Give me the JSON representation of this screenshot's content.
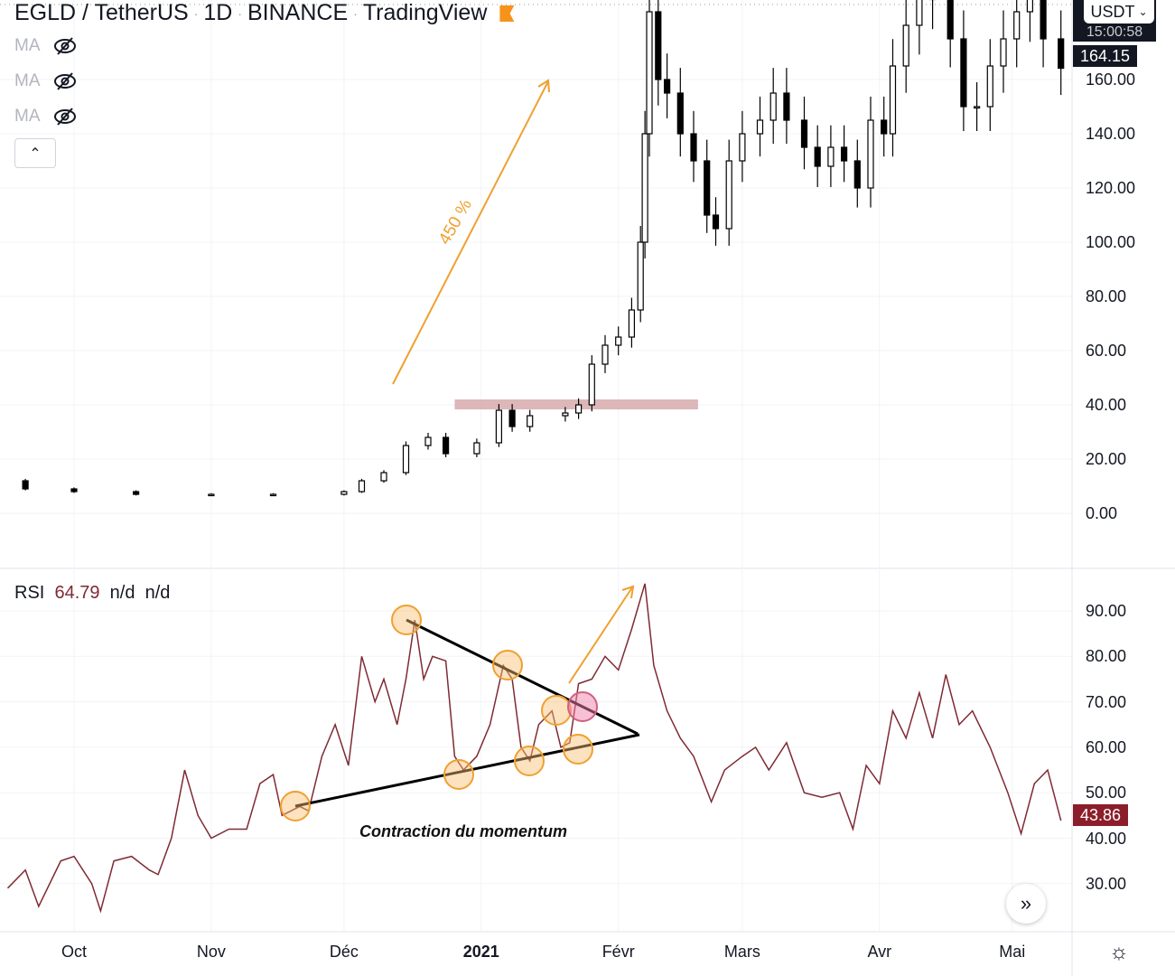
{
  "header": {
    "symbol": "EGLD / TetherUS",
    "interval": "1D",
    "exchange": "BINANCE",
    "source": "TradingView",
    "flag_color": "#f7931a"
  },
  "indicators": [
    {
      "label": "MA",
      "icon": "eye-off-icon"
    },
    {
      "label": "MA",
      "icon": "eye-off-icon"
    },
    {
      "label": "MA",
      "icon": "eye-off-icon"
    }
  ],
  "collapse_icon": "chevron-up-icon",
  "currency_selector": {
    "label": "USDT",
    "countdown": "15:00:58"
  },
  "last_price": "164.15",
  "rsi_legend": {
    "name": "RSI",
    "value": "64.79",
    "v2": "n/d",
    "v3": "n/d",
    "last_value": "43.86",
    "line_color": "#7f2a33"
  },
  "annotations": {
    "gain_label": "450 %",
    "rsi_note": "Contraction du momentum",
    "arrow_color": "#f0a030",
    "zone_color": "#d4a5a8"
  },
  "chart_data": [
    {
      "type": "candlestick",
      "title": "EGLD / TetherUS 1D",
      "ylim": [
        0,
        190
      ],
      "y_ticks": [
        "0.00",
        "20.00",
        "40.00",
        "60.00",
        "80.00",
        "100.00",
        "120.00",
        "140.00",
        "160.00"
      ],
      "x_ticks": [
        "Oct",
        "Nov",
        "Déc",
        "2021",
        "Févr",
        "Mars",
        "Avr",
        "Mai"
      ],
      "resistance_zone": {
        "value": 40,
        "from": "2020-12-26",
        "to": "2021-02-19"
      },
      "series": [
        [
          "2020-09-14",
          12
        ],
        [
          "2020-09-20",
          9
        ],
        [
          "2020-10-01",
          8
        ],
        [
          "2020-10-15",
          7
        ],
        [
          "2020-11-01",
          7
        ],
        [
          "2020-11-15",
          7
        ],
        [
          "2020-12-01",
          8
        ],
        [
          "2020-12-05",
          12
        ],
        [
          "2020-12-10",
          15
        ],
        [
          "2020-12-15",
          25
        ],
        [
          "2020-12-20",
          28
        ],
        [
          "2020-12-24",
          22
        ],
        [
          "2020-12-31",
          26
        ],
        [
          "2021-01-05",
          38
        ],
        [
          "2021-01-08",
          32
        ],
        [
          "2021-01-12",
          36
        ],
        [
          "2021-01-20",
          37
        ],
        [
          "2021-01-23",
          40
        ],
        [
          "2021-01-26",
          55
        ],
        [
          "2021-01-29",
          62
        ],
        [
          "2021-02-01",
          65
        ],
        [
          "2021-02-04",
          75
        ],
        [
          "2021-02-06",
          100
        ],
        [
          "2021-02-07",
          140
        ],
        [
          "2021-02-08",
          185
        ],
        [
          "2021-02-10",
          160
        ],
        [
          "2021-02-12",
          155
        ],
        [
          "2021-02-15",
          140
        ],
        [
          "2021-02-18",
          130
        ],
        [
          "2021-02-21",
          110
        ],
        [
          "2021-02-23",
          105
        ],
        [
          "2021-02-26",
          130
        ],
        [
          "2021-03-01",
          140
        ],
        [
          "2021-03-05",
          145
        ],
        [
          "2021-03-08",
          155
        ],
        [
          "2021-03-11",
          145
        ],
        [
          "2021-03-15",
          135
        ],
        [
          "2021-03-18",
          128
        ],
        [
          "2021-03-21",
          135
        ],
        [
          "2021-03-24",
          130
        ],
        [
          "2021-03-27",
          120
        ],
        [
          "2021-03-30",
          145
        ],
        [
          "2021-04-02",
          140
        ],
        [
          "2021-04-04",
          165
        ],
        [
          "2021-04-07",
          180
        ],
        [
          "2021-04-10",
          190
        ],
        [
          "2021-04-13",
          190
        ],
        [
          "2021-04-17",
          175
        ],
        [
          "2021-04-20",
          150
        ],
        [
          "2021-04-23",
          150
        ],
        [
          "2021-04-26",
          165
        ],
        [
          "2021-04-29",
          175
        ],
        [
          "2021-05-02",
          185
        ],
        [
          "2021-05-05",
          190
        ],
        [
          "2021-05-08",
          175
        ],
        [
          "2021-05-12",
          164.15
        ]
      ]
    },
    {
      "type": "line",
      "title": "RSI",
      "ylim": [
        24,
        98
      ],
      "y_ticks": [
        "30.00",
        "40.00",
        "50.00",
        "60.00",
        "70.00",
        "80.00",
        "90.00"
      ],
      "series": [
        [
          "2020-09-16",
          29
        ],
        [
          "2020-09-20",
          33
        ],
        [
          "2020-09-23",
          25
        ],
        [
          "2020-09-28",
          35
        ],
        [
          "2020-10-01",
          36
        ],
        [
          "2020-10-05",
          30
        ],
        [
          "2020-10-07",
          24
        ],
        [
          "2020-10-10",
          35
        ],
        [
          "2020-10-14",
          36
        ],
        [
          "2020-10-18",
          33
        ],
        [
          "2020-10-20",
          32
        ],
        [
          "2020-10-23",
          40
        ],
        [
          "2020-10-26",
          55
        ],
        [
          "2020-10-29",
          45
        ],
        [
          "2020-11-01",
          40
        ],
        [
          "2020-11-05",
          42
        ],
        [
          "2020-11-09",
          42
        ],
        [
          "2020-11-12",
          52
        ],
        [
          "2020-11-15",
          54
        ],
        [
          "2020-11-17",
          45
        ],
        [
          "2020-11-21",
          47
        ],
        [
          "2020-11-23",
          46
        ],
        [
          "2020-11-26",
          58
        ],
        [
          "2020-11-29",
          65
        ],
        [
          "2020-12-02",
          56
        ],
        [
          "2020-12-05",
          80
        ],
        [
          "2020-12-08",
          70
        ],
        [
          "2020-12-10",
          75
        ],
        [
          "2020-12-13",
          65
        ],
        [
          "2020-12-15",
          75
        ],
        [
          "2020-12-17",
          88
        ],
        [
          "2020-12-19",
          75
        ],
        [
          "2020-12-21",
          80
        ],
        [
          "2020-12-24",
          79
        ],
        [
          "2020-12-26",
          58
        ],
        [
          "2020-12-28",
          55
        ],
        [
          "2020-12-31",
          58
        ],
        [
          "2021-01-03",
          65
        ],
        [
          "2021-01-06",
          78
        ],
        [
          "2021-01-08",
          75
        ],
        [
          "2021-01-10",
          60
        ],
        [
          "2021-01-12",
          57
        ],
        [
          "2021-01-14",
          65
        ],
        [
          "2021-01-17",
          68
        ],
        [
          "2021-01-19",
          60
        ],
        [
          "2021-01-21",
          61
        ],
        [
          "2021-01-23",
          74
        ],
        [
          "2021-01-26",
          75
        ],
        [
          "2021-01-29",
          80
        ],
        [
          "2021-02-01",
          77
        ],
        [
          "2021-02-04",
          86
        ],
        [
          "2021-02-07",
          96
        ],
        [
          "2021-02-09",
          78
        ],
        [
          "2021-02-12",
          68
        ],
        [
          "2021-02-15",
          62
        ],
        [
          "2021-02-18",
          58
        ],
        [
          "2021-02-22",
          48
        ],
        [
          "2021-02-25",
          55
        ],
        [
          "2021-03-01",
          58
        ],
        [
          "2021-03-04",
          60
        ],
        [
          "2021-03-07",
          55
        ],
        [
          "2021-03-11",
          61
        ],
        [
          "2021-03-15",
          50
        ],
        [
          "2021-03-19",
          49
        ],
        [
          "2021-03-23",
          50
        ],
        [
          "2021-03-26",
          42
        ],
        [
          "2021-03-29",
          56
        ],
        [
          "2021-04-01",
          52
        ],
        [
          "2021-04-04",
          68
        ],
        [
          "2021-04-07",
          62
        ],
        [
          "2021-04-10",
          72
        ],
        [
          "2021-04-13",
          62
        ],
        [
          "2021-04-16",
          76
        ],
        [
          "2021-04-19",
          65
        ],
        [
          "2021-04-22",
          68
        ],
        [
          "2021-04-26",
          60
        ],
        [
          "2021-04-30",
          50
        ],
        [
          "2021-05-03",
          41
        ],
        [
          "2021-05-06",
          52
        ],
        [
          "2021-05-09",
          55
        ],
        [
          "2021-05-12",
          43.86
        ]
      ]
    }
  ]
}
